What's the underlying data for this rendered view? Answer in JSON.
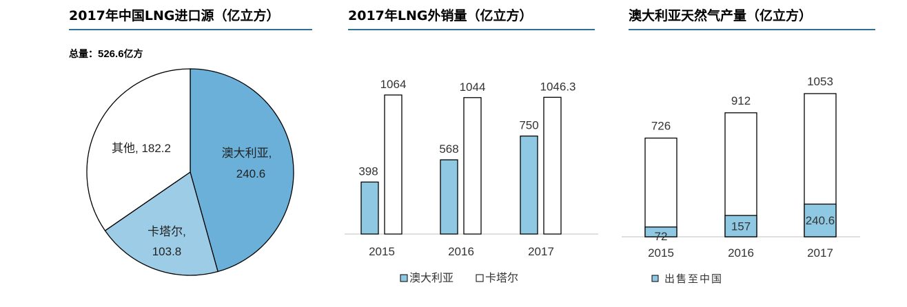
{
  "panels": {
    "pie_title": "2017年中国LNG进口源（亿立方）",
    "bar_title": "2017年LNG外销量（亿立方）",
    "stack_title": "澳大利亚天然气产量（亿立方）",
    "total_label": "总量：",
    "total_value": "526.6",
    "total_unit": "亿方"
  },
  "colors": {
    "accent": "#2e6f97",
    "australia": "#6ab0d8",
    "qatar": "#9dcde6",
    "others": "#ffffff",
    "bar_blue": "#8ec8e2",
    "outline": "#000000"
  },
  "chart_data": [
    {
      "type": "pie",
      "title": "2017年中国LNG进口源（亿立方）",
      "total_text": "总量：526.6亿方",
      "slices": [
        {
          "name": "澳大利亚",
          "value": 240.6,
          "label1": "澳大利亚,",
          "label2": "240.6"
        },
        {
          "name": "卡塔尔",
          "value": 103.8,
          "label1": "卡塔尔,",
          "label2": "103.8"
        },
        {
          "name": "其他",
          "value": 182.2,
          "label1": "其他, 182.2",
          "label2": ""
        }
      ]
    },
    {
      "type": "bar",
      "title": "2017年LNG外销量（亿立方）",
      "categories": [
        "2015",
        "2016",
        "2017"
      ],
      "series": [
        {
          "name": "澳大利亚",
          "values": [
            398,
            568,
            750
          ],
          "labels": [
            "398",
            "568",
            "750"
          ]
        },
        {
          "name": "卡塔尔",
          "values": [
            1064,
            1044,
            1046.3
          ],
          "labels": [
            "1064",
            "1044",
            "1046.3"
          ]
        }
      ],
      "ylim": [
        0,
        1300
      ]
    },
    {
      "type": "bar",
      "title": "澳大利亚天然气产量（亿立方）",
      "categories": [
        "2015",
        "2016",
        "2017"
      ],
      "totals": [
        726,
        912,
        1053
      ],
      "total_labels": [
        "726",
        "912",
        "1053"
      ],
      "series": [
        {
          "name": "出售至中国",
          "values": [
            72,
            157,
            240.6
          ],
          "labels": [
            "72",
            "157",
            "240.6"
          ]
        }
      ],
      "ylim": [
        0,
        1300
      ]
    }
  ]
}
